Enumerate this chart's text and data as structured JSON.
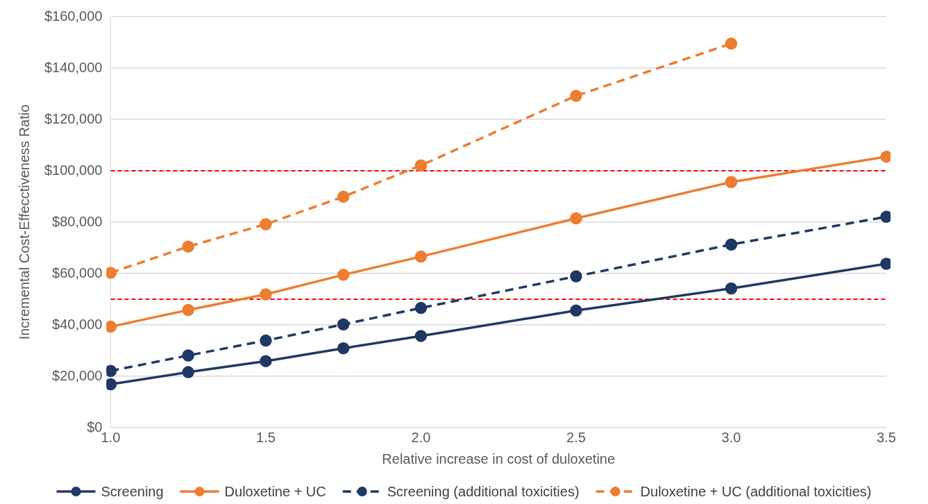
{
  "chart_data": {
    "type": "line",
    "xlabel": "Relative increase in cost of duloxetine",
    "ylabel": "Incremental Cost-Effecctiveness Ratio",
    "xlim": [
      1,
      3.5
    ],
    "xticks": [
      {
        "value": 1,
        "label": "1.0"
      },
      {
        "value": 1.5,
        "label": "1.5"
      },
      {
        "value": 2,
        "label": "2.0"
      },
      {
        "value": 2.5,
        "label": "2.5"
      },
      {
        "value": 3,
        "label": "3.0"
      },
      {
        "value": 3.5,
        "label": "3.5"
      }
    ],
    "ylim": [
      0,
      160000
    ],
    "yticks": [
      {
        "value": 0,
        "label": "$0"
      },
      {
        "value": 20000,
        "label": "$20,000"
      },
      {
        "value": 40000,
        "label": "$40,000"
      },
      {
        "value": 60000,
        "label": "$60,000"
      },
      {
        "value": 80000,
        "label": "$80,000"
      },
      {
        "value": 100000,
        "label": "$100,000"
      },
      {
        "value": 120000,
        "label": "$120,000"
      },
      {
        "value": 140000,
        "label": "$140,000"
      },
      {
        "value": 160000,
        "label": "$160,000"
      }
    ],
    "x": [
      1,
      1.25,
      1.5,
      1.75,
      2,
      2.5,
      3,
      3.5
    ],
    "series": [
      {
        "name": "Screening",
        "color": "#203864",
        "line_style": "solid",
        "values": [
          16900,
          21600,
          25900,
          30900,
          35700,
          45600,
          54200,
          63800
        ]
      },
      {
        "name": "Duloxetine + UC",
        "color": "#ed7d31",
        "line_style": "solid",
        "values": [
          39300,
          45800,
          51900,
          59500,
          66600,
          81500,
          95600,
          105500
        ]
      },
      {
        "name": "Screening (additional toxicities)",
        "color": "#203864",
        "line_style": "dashed",
        "values": [
          22100,
          28100,
          33900,
          40200,
          46600,
          58900,
          71300,
          82100
        ]
      },
      {
        "name": "Duloxetine + UC (additional toxicities)",
        "color": "#ed7d31",
        "line_style": "dashed",
        "values": [
          60300,
          70500,
          79200,
          89900,
          102100,
          129200,
          149500,
          null
        ]
      }
    ],
    "ref_lines": [
      {
        "axis": "y",
        "value": 100000,
        "color": "#ff0000",
        "line_style": "dashed"
      },
      {
        "axis": "y",
        "value": 50000,
        "color": "#ff0000",
        "line_style": "dashed"
      }
    ],
    "grid": "y",
    "legend": "bottom",
    "marker": "circle"
  }
}
